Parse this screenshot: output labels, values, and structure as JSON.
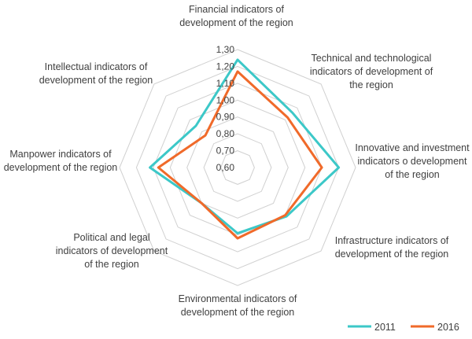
{
  "chart_data": {
    "type": "radar",
    "axes": [
      "Financial indicators of development of the region",
      "Technical and technological indicators of development of the region",
      "Innovative and investment indicators o development of the region",
      "Infrastructure indicators of development of the region",
      "Environmental indicators of development of the region",
      "Political and legal indicators of development of the region",
      "Manpower indicators of development of the region",
      "Intellectual indicators of development of the region"
    ],
    "tick_labels": [
      "0,60",
      "0,70",
      "0,80",
      "0,90",
      "1,00",
      "1,10",
      "1,20",
      "1,30"
    ],
    "range": [
      0.6,
      1.3
    ],
    "grid": true,
    "legend_position": "bottom-right",
    "series": [
      {
        "name": "2011",
        "color": "#3CC8C8",
        "values": [
          1.24,
          1.06,
          1.2,
          1.01,
          0.99,
          0.9,
          1.12,
          0.95
        ]
      },
      {
        "name": "2016",
        "color": "#F06A2A",
        "values": [
          1.17,
          1.02,
          1.1,
          1.0,
          1.02,
          0.9,
          1.07,
          0.87
        ]
      }
    ]
  }
}
